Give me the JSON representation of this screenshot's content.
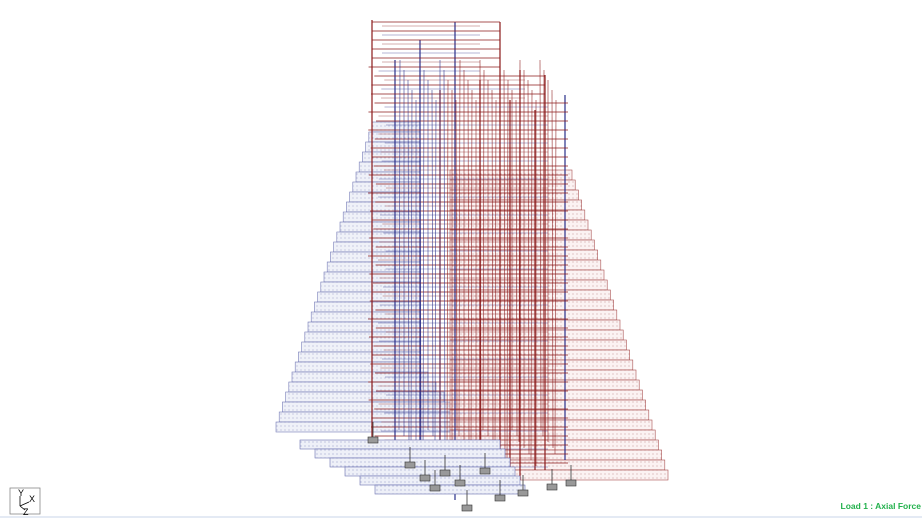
{
  "status_label": "Load 1 : Axial Force",
  "axis_triad": {
    "y": "Y",
    "x": "X",
    "z": "Z"
  }
}
